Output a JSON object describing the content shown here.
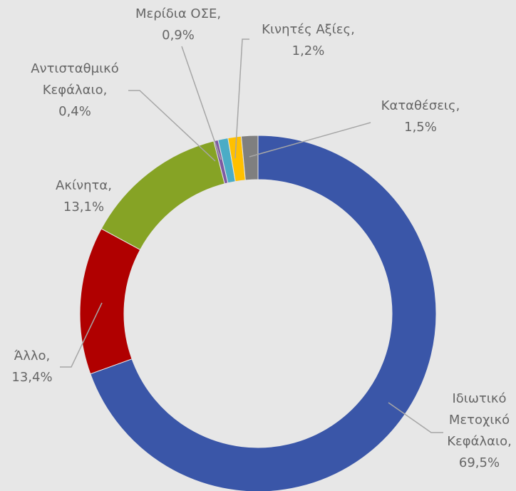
{
  "chart_data": {
    "type": "donut",
    "categories": [
      "Ιδιωτικό Μετοχικό Κεφάλαιο,",
      "Άλλο,",
      "Ακίνητα,",
      "Αντισταθμικό Κεφάλαιο,",
      "Μερίδια ΟΣΕ,",
      "Κινητές Αξίες,",
      "Καταθέσεις,"
    ],
    "values": [
      69.5,
      13.4,
      13.1,
      0.4,
      0.9,
      1.2,
      1.5
    ],
    "value_labels": [
      "69,5%",
      "13,4%",
      "13,1%",
      "0,4%",
      "0,9%",
      "1,2%",
      "1,5%"
    ],
    "colors": [
      "#3a56a8",
      "#b00000",
      "#86a325",
      "#7e5aa2",
      "#4bacc6",
      "#ffc000",
      "#7f7f7f"
    ]
  }
}
